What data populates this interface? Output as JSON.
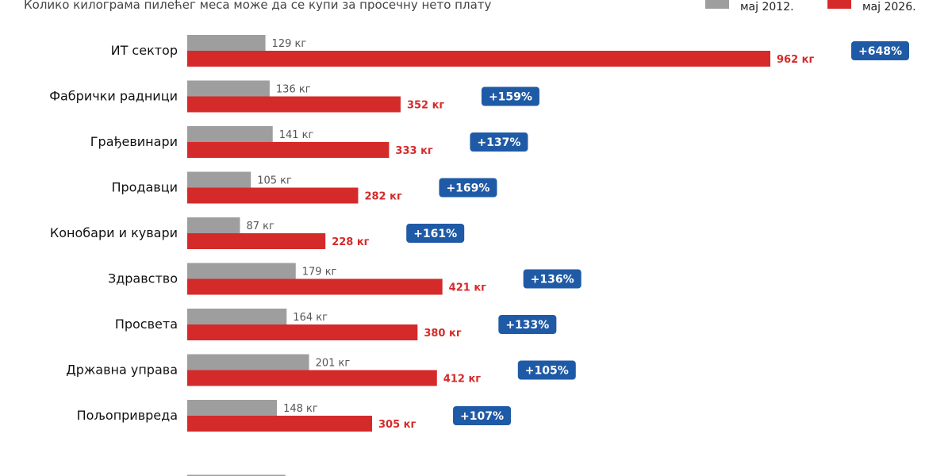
{
  "subtitle": "Колико килограма пилећег меса може да се купи за просечну нето плату",
  "legend": {
    "old_label": "мај 2012.",
    "new_label": "мај 2026."
  },
  "colors": {
    "old": "#9e9e9e",
    "new": "#d52a2a",
    "badge": "#1f5aa6"
  },
  "chart_data": {
    "type": "bar",
    "orientation": "horizontal",
    "unit": "кг",
    "categories": [
      "ИТ сектор",
      "Фабрички радници",
      "Грађевинари",
      "Продавци",
      "Конобари и кувари",
      "Здравство",
      "Просвета",
      "Државна управа",
      "Пољопривреда"
    ],
    "series": [
      {
        "name": "мај 2012.",
        "values": [
          129,
          136,
          141,
          105,
          87,
          179,
          164,
          201,
          148
        ]
      },
      {
        "name": "мај 2026.",
        "values": [
          962,
          352,
          333,
          282,
          228,
          421,
          380,
          412,
          305
        ]
      }
    ],
    "value_labels_old": [
      "129 кг",
      "136 кг",
      "141 кг",
      "105 кг",
      "87 кг",
      "179 кг",
      "164 кг",
      "201 кг",
      "148 кг"
    ],
    "value_labels_new": [
      "962 кг",
      "352 кг",
      "333 кг",
      "282 кг",
      "228 кг",
      "421 кг",
      "380 кг",
      "412 кг",
      "305 кг"
    ],
    "change_labels": [
      "+648%",
      "+159%",
      "+137%",
      "+169%",
      "+161%",
      "+136%",
      "+133%",
      "+105%",
      "+107%"
    ],
    "partial_bar_old": 162,
    "legend_position": "top-right",
    "grid": false
  }
}
